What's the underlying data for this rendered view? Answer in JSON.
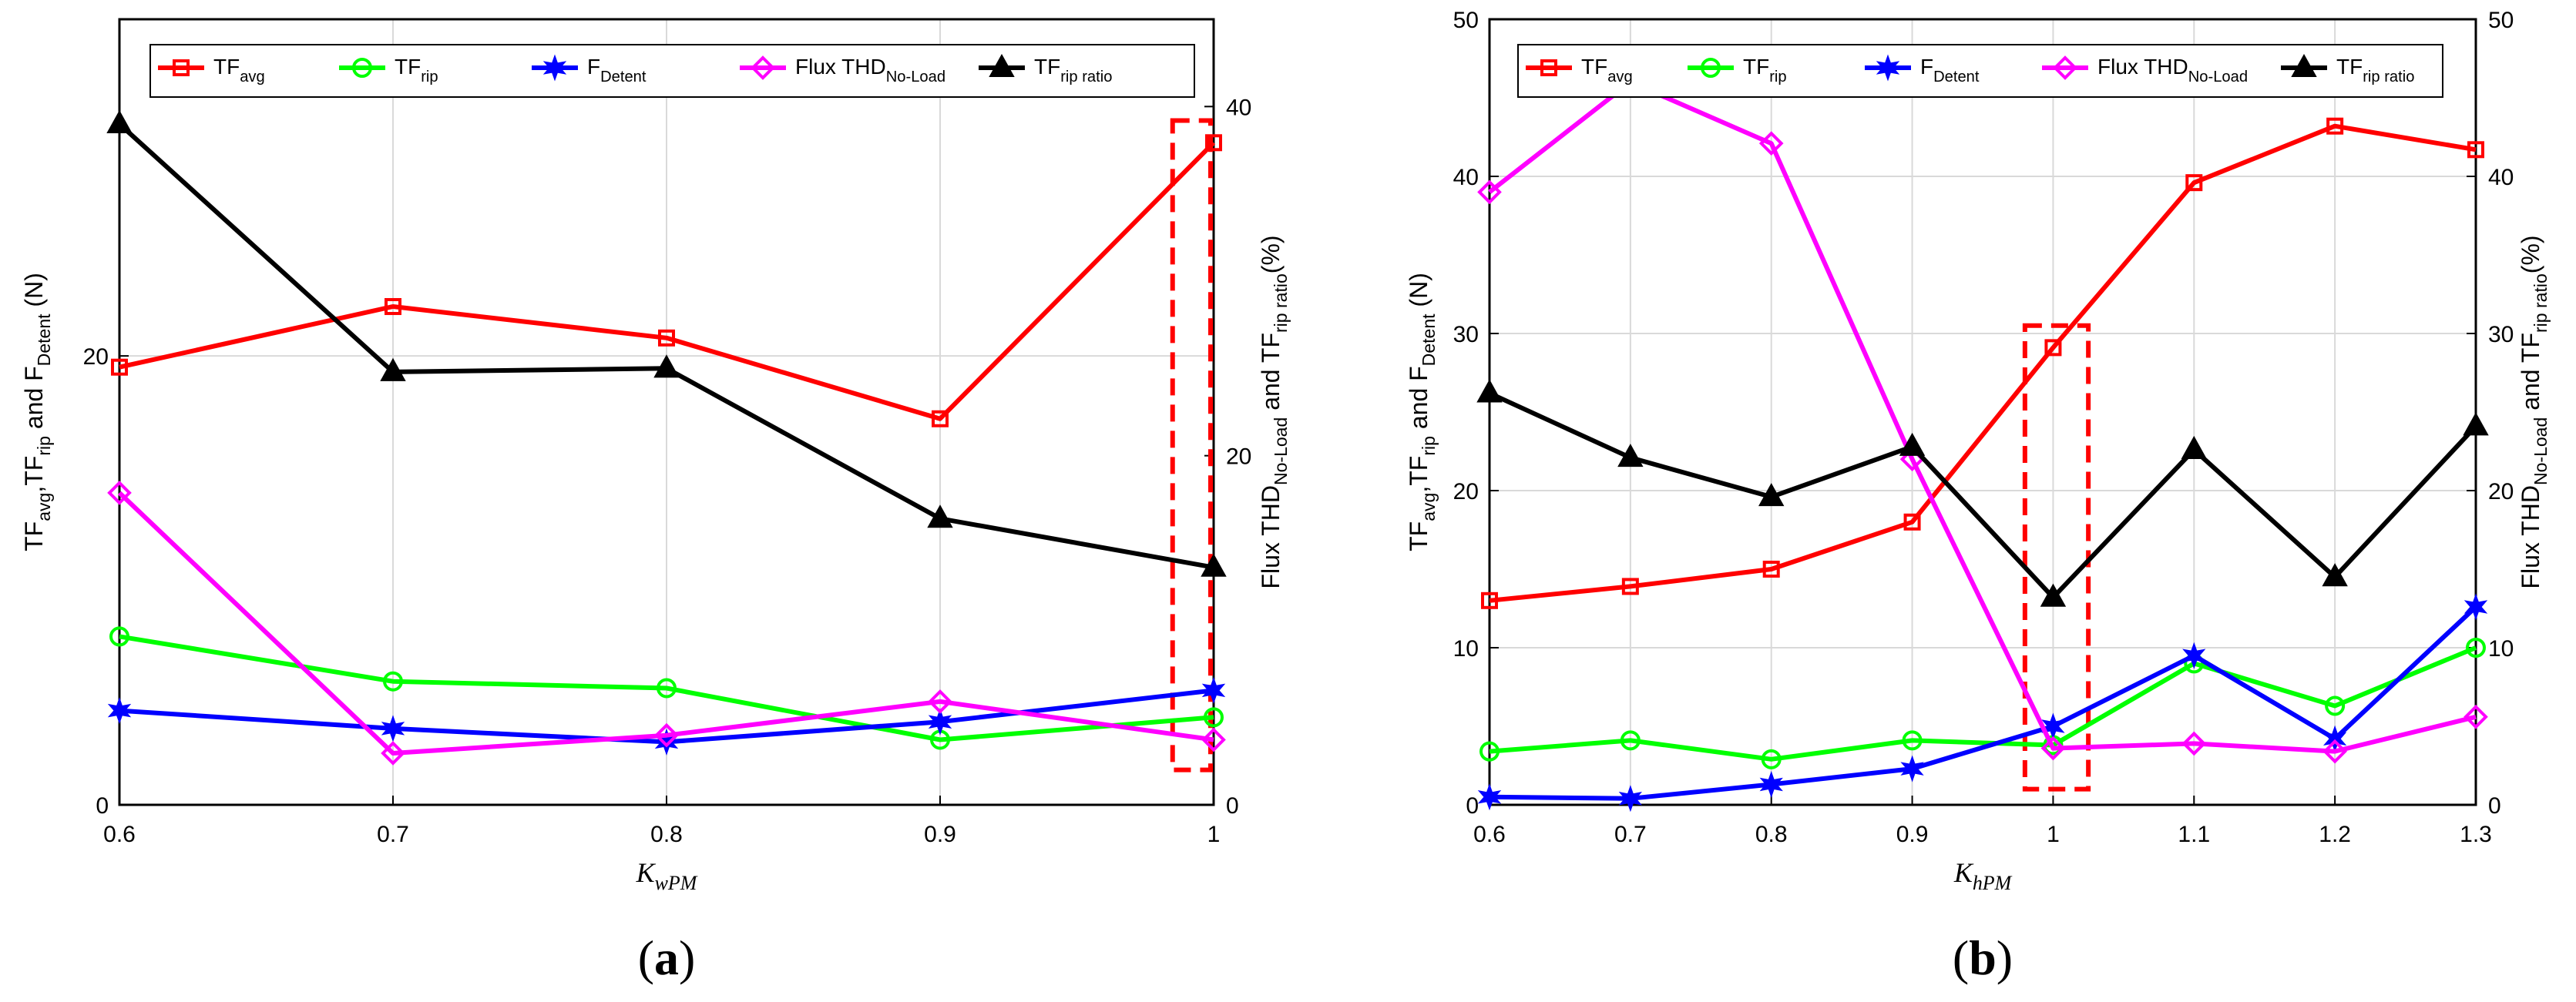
{
  "chart_data": [
    {
      "type": "line",
      "panel_label": {
        "open": "(",
        "letter": "a",
        "close": ")"
      },
      "xlabel": {
        "main": "K",
        "sub": "wPM"
      },
      "ylabel_left": [
        [
          "TF",
          ""
        ],
        [
          "avg",
          "sub"
        ],
        [
          ",TF",
          ""
        ],
        [
          "rip",
          "sub"
        ],
        [
          " and F",
          ""
        ],
        [
          "Detent",
          "sub"
        ],
        [
          " (N)",
          ""
        ]
      ],
      "ylabel_right": [
        [
          "Flux THD",
          ""
        ],
        [
          "No-Load",
          "sub"
        ],
        [
          "  and TF",
          ""
        ],
        [
          "rip ratio",
          "sub"
        ],
        [
          "(%)",
          ""
        ]
      ],
      "x": [
        0.6,
        0.7,
        0.8,
        0.9,
        1.0
      ],
      "xticks": [
        "0.6",
        "0.7",
        "0.8",
        "0.9",
        "1"
      ],
      "xlim": [
        0.6,
        1.0
      ],
      "ylim_left": [
        0,
        35
      ],
      "yticks_left": [
        "0",
        "20"
      ],
      "ylim_right": [
        0,
        45
      ],
      "yticks_right": [
        "0",
        "20",
        "40"
      ],
      "highlight": {
        "x_from": 0.985,
        "x_to": 1.0,
        "y_from": 2.0,
        "y_to": 39.2,
        "axis": "right"
      },
      "series": [
        {
          "name": [
            "TF",
            "avg"
          ],
          "color": "#ff0000",
          "marker": "square",
          "axis": "left",
          "values": [
            19.5,
            22.2,
            20.8,
            17.2,
            29.5
          ]
        },
        {
          "name": [
            "TF",
            "rip"
          ],
          "color": "#00ff00",
          "marker": "circle",
          "axis": "left",
          "values": [
            7.5,
            5.5,
            5.2,
            2.9,
            3.9
          ]
        },
        {
          "name": [
            "F",
            "Detent"
          ],
          "color": "#0000ff",
          "marker": "star",
          "axis": "left",
          "values": [
            4.2,
            3.4,
            2.8,
            3.7,
            5.1
          ]
        },
        {
          "name": [
            "Flux THD",
            "No-Load"
          ],
          "color": "#ff00ff",
          "marker": "diamond",
          "axis": "left",
          "values": [
            13.9,
            2.3,
            3.1,
            4.6,
            2.9
          ]
        },
        {
          "name": [
            "TF",
            "rip ratio"
          ],
          "color": "#000000",
          "marker": "triangle",
          "axis": "right",
          "values": [
            39.0,
            24.8,
            25.0,
            16.4,
            13.6
          ]
        }
      ]
    },
    {
      "type": "line",
      "panel_label": {
        "open": "(",
        "letter": "b",
        "close": ")"
      },
      "xlabel": {
        "main": "K",
        "sub": "hPM"
      },
      "ylabel_left": [
        [
          "TF",
          ""
        ],
        [
          "avg",
          "sub"
        ],
        [
          ",TF",
          ""
        ],
        [
          "rip",
          "sub"
        ],
        [
          " and F",
          ""
        ],
        [
          "Detent",
          "sub"
        ],
        [
          " (N)",
          ""
        ]
      ],
      "ylabel_right": [
        [
          "Flux THD",
          ""
        ],
        [
          "No-Load",
          "sub"
        ],
        [
          "  and TF",
          ""
        ],
        [
          "rip ratio",
          "sub"
        ],
        [
          "(%)",
          ""
        ]
      ],
      "x": [
        0.6,
        0.7,
        0.8,
        0.9,
        1.0,
        1.1,
        1.2,
        1.3
      ],
      "xticks": [
        "0.6",
        "0.7",
        "0.8",
        "0.9",
        "1",
        "1.1",
        "1.2",
        "1.3"
      ],
      "xlim": [
        0.6,
        1.3
      ],
      "ylim_left": [
        0,
        50
      ],
      "yticks_left": [
        "0",
        "10",
        "20",
        "30",
        "40",
        "50"
      ],
      "ylim_right": [
        0,
        50
      ],
      "yticks_right": [
        "0",
        "10",
        "20",
        "30",
        "40",
        "50"
      ],
      "highlight": {
        "x_from": 0.98,
        "x_to": 1.025,
        "y_from": 1.0,
        "y_to": 30.5,
        "axis": "left"
      },
      "series": [
        {
          "name": [
            "TF",
            "avg"
          ],
          "color": "#ff0000",
          "marker": "square",
          "axis": "left",
          "values": [
            13.0,
            13.9,
            15.0,
            18.0,
            29.1,
            39.6,
            43.2,
            41.7
          ]
        },
        {
          "name": [
            "TF",
            "rip"
          ],
          "color": "#00ff00",
          "marker": "circle",
          "axis": "left",
          "values": [
            3.4,
            4.1,
            2.9,
            4.1,
            3.8,
            9.0,
            6.3,
            10.0
          ]
        },
        {
          "name": [
            "F",
            "Detent"
          ],
          "color": "#0000ff",
          "marker": "star",
          "axis": "left",
          "values": [
            0.5,
            0.4,
            1.3,
            2.3,
            5.0,
            9.5,
            4.2,
            12.6
          ]
        },
        {
          "name": [
            "Flux THD",
            "No-Load"
          ],
          "color": "#ff00ff",
          "marker": "diamond",
          "axis": "left",
          "values": [
            39.0,
            46.0,
            42.1,
            22.0,
            3.6,
            3.9,
            3.4,
            5.6
          ]
        },
        {
          "name": [
            "TF",
            "rip ratio"
          ],
          "color": "#000000",
          "marker": "triangle",
          "axis": "right",
          "values": [
            26.2,
            22.1,
            19.6,
            22.8,
            13.2,
            22.6,
            14.5,
            24.1
          ]
        }
      ]
    }
  ]
}
